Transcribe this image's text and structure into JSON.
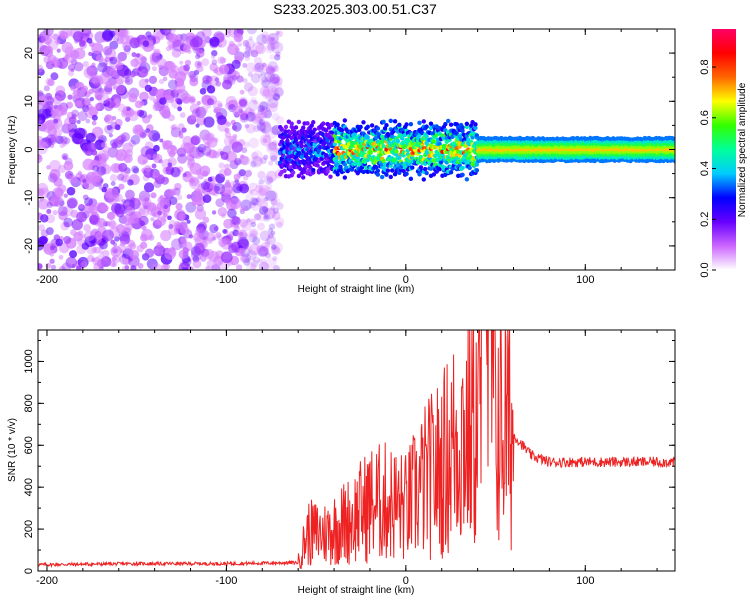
{
  "title": "S233.2025.303.00.51.C37",
  "chart_data": [
    {
      "type": "heatmap",
      "title": "S233.2025.303.00.51.C37",
      "xlabel": "Height of straight line (km)",
      "ylabel": "Frequency (Hz)",
      "xlim": [
        -205,
        150
      ],
      "ylim": [
        -25,
        25
      ],
      "xticks": [
        -200,
        -100,
        0,
        100
      ],
      "yticks": [
        -20,
        -10,
        0,
        10,
        20
      ],
      "colorbar": {
        "label": "Normalized spectral amplitude",
        "range": [
          0.0,
          0.95
        ],
        "ticks": [
          0.0,
          0.2,
          0.4,
          0.6,
          0.8
        ],
        "colormap": [
          "#ffffff",
          "#cc66ff",
          "#6600ff",
          "#0000ff",
          "#00ccff",
          "#00ff99",
          "#33ff00",
          "#ffff00",
          "#ff6600",
          "#ff0000",
          "#ff0066"
        ]
      },
      "description_points": [
        {
          "x_start": -205,
          "x_end": -70,
          "freq_range": [
            -25,
            25
          ],
          "amplitude": 0.1
        },
        {
          "x_start": -70,
          "x_end": 150,
          "freq_center": 0,
          "amplitude": 0.5
        }
      ]
    },
    {
      "type": "line",
      "xlabel": "Height of straight line (km)",
      "ylabel": "SNR (10 * v/v)",
      "xlim": [
        -205,
        150
      ],
      "ylim": [
        0,
        1150
      ],
      "xticks": [
        -200,
        -100,
        0,
        100
      ],
      "yticks": [
        0,
        200,
        400,
        600,
        800,
        1000
      ],
      "color": "#ee2222",
      "series": [
        {
          "name": "SNR",
          "x": [
            -205,
            -150,
            -100,
            -60,
            -55,
            -45,
            -30,
            -20,
            -10,
            0,
            10,
            20,
            30,
            40,
            45,
            50,
            60,
            70,
            80,
            100,
            120,
            150
          ],
          "y": [
            30,
            35,
            35,
            40,
            180,
            180,
            250,
            320,
            330,
            300,
            420,
            500,
            650,
            700,
            1150,
            750,
            650,
            550,
            520,
            520,
            520,
            520
          ]
        }
      ]
    }
  ]
}
